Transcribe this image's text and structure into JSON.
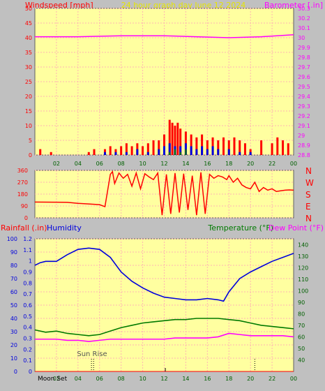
{
  "header": {
    "left_title": "Windspeed [mph]",
    "center_title": "24 hour graph day   June 12 2024",
    "right_title": "Barometer [.in]"
  },
  "colors": {
    "background": "#c0c0c0",
    "plot": "#ffffa0",
    "grid": "#ffb3b3",
    "red": "#ff0000",
    "magenta": "#ff00ff",
    "blue": "#0000dd",
    "green": "#007a00",
    "dark_green": "#006000",
    "yellow": "#e6e600"
  },
  "panel3_labels": {
    "rainfall": "Rainfall (.in)",
    "humidity": "Humidity",
    "temperature": "Temperature (°F)",
    "dewpoint": "Dew Point (°F)"
  },
  "annotations": {
    "sun_rise": "Sun Rise",
    "moon_set": "Moon Set"
  },
  "compass": [
    "N",
    "W",
    "S",
    "E",
    "N"
  ],
  "chart_data": [
    {
      "type": "bar",
      "name": "wind",
      "title": "24 hour graph day   June 12 2024",
      "x_ticks": [
        "02",
        "04",
        "06",
        "08",
        "10",
        "12",
        "14",
        "16",
        "18",
        "20",
        "22",
        "00"
      ],
      "y_left": {
        "label": "Windspeed [mph]",
        "range": [
          0,
          50
        ],
        "ticks": [
          "0",
          "5",
          "10",
          "15",
          "20",
          "25",
          "30",
          "35",
          "40",
          "45",
          "50"
        ]
      },
      "y_right": {
        "label": "Barometer [.in]",
        "range": [
          28.8,
          30.3
        ],
        "ticks": [
          "28.8",
          "28.9",
          "29",
          "29.1",
          "29.2",
          "29.3",
          "29.4",
          "29.5",
          "29.6",
          "29.7",
          "29.8",
          "29.9",
          "30",
          "30.1",
          "30.2",
          "30.3"
        ]
      },
      "barometer": {
        "x": [
          0,
          4,
          8,
          12,
          15,
          18,
          21,
          24
        ],
        "y": [
          30.01,
          30.01,
          30.02,
          30.02,
          30.01,
          30.0,
          30.01,
          30.03
        ]
      },
      "gust": {
        "x": [
          0.5,
          1.5,
          5.0,
          5.5,
          6.5,
          7.0,
          7.5,
          8.0,
          8.5,
          9.0,
          9.5,
          10.0,
          10.5,
          11.0,
          11.5,
          12.0,
          12.5,
          12.75,
          13.0,
          13.25,
          13.5,
          14.0,
          14.5,
          15.0,
          15.5,
          16.0,
          16.5,
          17.0,
          17.5,
          18.0,
          18.5,
          19.0,
          19.5,
          20.0,
          21.0,
          22.0,
          22.5,
          23.0,
          23.5
        ],
        "values": [
          2,
          1,
          1,
          2,
          2,
          3,
          2,
          3,
          4,
          3,
          4,
          3,
          4,
          5,
          5,
          7,
          12,
          11,
          10,
          11,
          9,
          8,
          7,
          6,
          7,
          5,
          6,
          5,
          6,
          5,
          6,
          5,
          4,
          2,
          5,
          4,
          6,
          5,
          4
        ]
      },
      "avg": {
        "x": [
          6.5,
          7.5,
          8.5,
          9.5,
          10.5,
          11.5,
          12.0,
          12.5,
          13.0,
          13.5,
          14.0,
          14.5,
          15.0,
          15.5,
          16.0,
          16.5,
          17.0,
          18.0,
          19.0,
          20.0
        ],
        "values": [
          1,
          1,
          1,
          2,
          1,
          2,
          3,
          4,
          3,
          3,
          4,
          3,
          2,
          3,
          2,
          3,
          2,
          2,
          1,
          1
        ]
      },
      "calm": {
        "x": [
          12.5,
          13.0,
          13.5,
          14.0
        ],
        "values": [
          1,
          2,
          1,
          2
        ]
      }
    },
    {
      "type": "line",
      "name": "wind_direction",
      "y_left": {
        "range": [
          0,
          360
        ],
        "ticks": [
          "0",
          "90",
          "180",
          "270",
          "360"
        ]
      },
      "direction": {
        "x": [
          0,
          3,
          4,
          5,
          6,
          6.5,
          7,
          7.2,
          7.4,
          7.8,
          8.2,
          8.6,
          9.0,
          9.4,
          9.8,
          10.2,
          10.6,
          11.0,
          11.4,
          11.8,
          12.2,
          12.6,
          13.0,
          13.4,
          13.8,
          14.2,
          14.6,
          15.0,
          15.4,
          15.8,
          16.2,
          16.6,
          17.0,
          17.4,
          17.8,
          18.0,
          18.4,
          18.8,
          19.2,
          19.6,
          20.0,
          20.4,
          20.8,
          21.2,
          21.6,
          22.0,
          22.4,
          22.8,
          23.2,
          23.6,
          24.0
        ],
        "y": [
          120,
          118,
          110,
          105,
          100,
          85,
          330,
          350,
          260,
          340,
          300,
          330,
          240,
          340,
          220,
          335,
          310,
          290,
          340,
          20,
          330,
          30,
          340,
          40,
          335,
          60,
          320,
          20,
          345,
          30,
          330,
          300,
          320,
          310,
          290,
          320,
          270,
          300,
          250,
          230,
          220,
          270,
          200,
          230,
          210,
          220,
          200,
          205,
          210,
          212,
          210
        ]
      }
    },
    {
      "type": "line",
      "name": "temperature_humidity",
      "x_ticks": [
        "02",
        "04",
        "06",
        "08",
        "10",
        "12",
        "14",
        "16",
        "18",
        "20",
        "22",
        "00"
      ],
      "y_rain": {
        "label": "Rainfall (.in)",
        "range": [
          0,
          1.2
        ],
        "ticks": [
          "0",
          "0.1",
          "0.2",
          "0.3",
          "0.4",
          "0.5",
          "0.6",
          "0.7",
          "0.8",
          "0.9",
          "1",
          "1.1",
          "1.2"
        ]
      },
      "y_humidity": {
        "label": "Humidity",
        "range": [
          0,
          100
        ],
        "ticks": [
          "0",
          "10",
          "20",
          "30",
          "40",
          "50",
          "60",
          "70",
          "80",
          "90",
          "100"
        ]
      },
      "y_temp": {
        "label": "Temperature (°F)",
        "range": [
          30,
          145
        ],
        "ticks": [
          "40",
          "50",
          "60",
          "70",
          "80",
          "90",
          "100",
          "110",
          "120",
          "130",
          "140"
        ]
      },
      "humidity": {
        "x": [
          0,
          0.5,
          1,
          2,
          3,
          4,
          5,
          6,
          7,
          8,
          9,
          10,
          11,
          12,
          13,
          14,
          15,
          16,
          17,
          17.5,
          18,
          19,
          20,
          21,
          22,
          23,
          24
        ],
        "y": [
          80,
          82,
          83,
          83,
          88,
          92,
          93,
          92,
          86,
          75,
          68,
          63,
          59,
          56,
          55,
          54,
          54,
          55,
          54,
          53,
          60,
          70,
          75,
          79,
          83,
          86,
          89
        ]
      },
      "temperature": {
        "x": [
          0,
          1,
          2,
          3,
          4,
          5,
          6,
          7,
          8,
          9,
          10,
          11,
          12,
          13,
          14,
          15,
          16,
          17,
          18,
          19,
          20,
          21,
          22,
          23,
          24
        ],
        "y": [
          66,
          64,
          65,
          63,
          62,
          61,
          62,
          65,
          68,
          70,
          72,
          73,
          74,
          75,
          75,
          76,
          76,
          76,
          75,
          74,
          72,
          70,
          69,
          68,
          67
        ]
      },
      "dewpoint": {
        "x": [
          0,
          1,
          2,
          3,
          4,
          5,
          6,
          7,
          8,
          9,
          10,
          11,
          12,
          13,
          14,
          15,
          16,
          17,
          18,
          19,
          20,
          21,
          22,
          23,
          24
        ],
        "y": [
          58,
          58,
          58,
          57,
          57,
          56,
          57,
          58,
          58,
          58,
          58,
          58,
          58,
          59,
          59,
          59,
          59,
          60,
          63,
          62,
          61,
          61,
          61,
          61,
          60
        ]
      },
      "rainfall": {
        "x": [
          0,
          24
        ],
        "y": [
          0,
          0
        ]
      }
    }
  ]
}
